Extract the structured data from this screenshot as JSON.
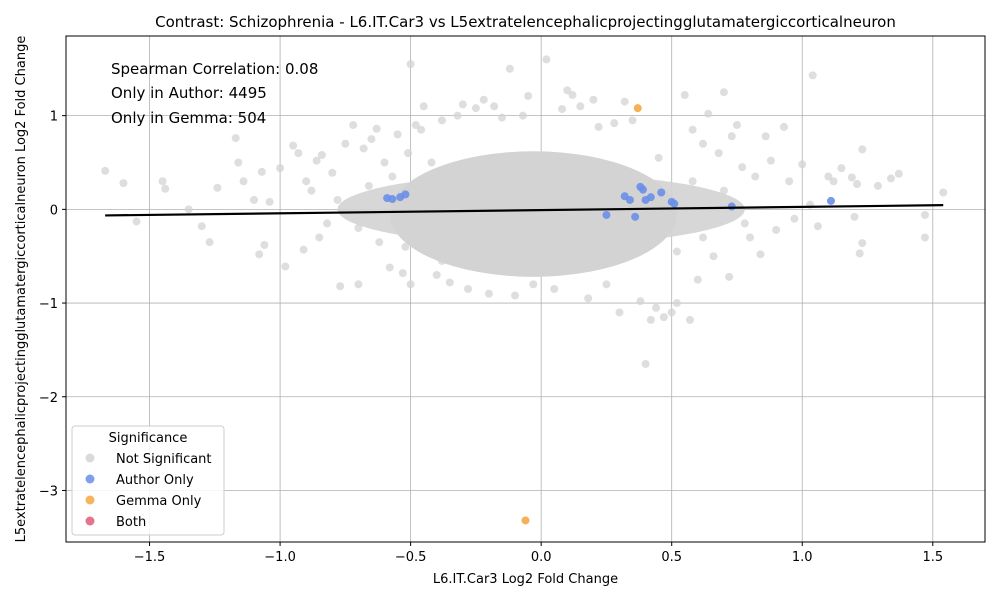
{
  "chart_data": {
    "type": "scatter",
    "title": "Contrast: Schizophrenia - L6.IT.Car3 vs L5extratelencephalicprojectingglutamatergiccorticalneuron",
    "xlabel": "L6.IT.Car3 Log2 Fold Change",
    "ylabel": "L5extratelencephalicprojectingglutamatergiccorticalneuron Log2 Fold Change",
    "xlim": [
      -1.82,
      1.7
    ],
    "ylim": [
      -3.55,
      1.85
    ],
    "x_ticks": [
      -1.5,
      -1.0,
      -0.5,
      0.0,
      0.5,
      1.0,
      1.5
    ],
    "x_tick_labels": [
      "−1.5",
      "−1.0",
      "−0.5",
      "0.0",
      "0.5",
      "1.0",
      "1.5"
    ],
    "y_ticks": [
      -3,
      -2,
      -1,
      0,
      1
    ],
    "y_tick_labels": [
      "−3",
      "−2",
      "−1",
      "0",
      "1"
    ],
    "grid": true,
    "annotations": [
      "Spearman Correlation: 0.08",
      "Only in Author: 4495",
      "Only in Gemma: 504"
    ],
    "legend": {
      "title": "Significance",
      "placement": "lower-left",
      "entries": [
        {
          "label": "Not Significant",
          "color": "#d3d3d3"
        },
        {
          "label": "Author Only",
          "color": "#6a8ee8"
        },
        {
          "label": "Gemma Only",
          "color": "#f5a742"
        },
        {
          "label": "Both",
          "color": "#e05a78"
        }
      ]
    },
    "trend_line": {
      "x": [
        -1.67,
        1.54
      ],
      "y": [
        -0.065,
        0.045
      ],
      "color": "#000000"
    },
    "series": [
      {
        "name": "Not Significant",
        "color": "#d3d3d3",
        "points": [
          [
            -1.67,
            0.41
          ],
          [
            -1.6,
            0.28
          ],
          [
            -1.55,
            -0.13
          ],
          [
            -1.45,
            0.3
          ],
          [
            -1.44,
            0.22
          ],
          [
            -1.35,
            0.0
          ],
          [
            -1.3,
            -0.18
          ],
          [
            -1.27,
            -0.35
          ],
          [
            -1.24,
            0.23
          ],
          [
            -1.17,
            0.76
          ],
          [
            -1.16,
            0.5
          ],
          [
            -1.14,
            0.3
          ],
          [
            -1.1,
            0.1
          ],
          [
            -1.08,
            -0.48
          ],
          [
            -1.07,
            0.4
          ],
          [
            -1.06,
            -0.38
          ],
          [
            -1.04,
            0.08
          ],
          [
            -1.0,
            0.44
          ],
          [
            -0.98,
            -0.61
          ],
          [
            -0.95,
            0.68
          ],
          [
            -0.93,
            0.6
          ],
          [
            -0.91,
            -0.43
          ],
          [
            -0.88,
            0.2
          ],
          [
            -0.86,
            0.52
          ],
          [
            -0.84,
            0.58
          ],
          [
            -0.82,
            -0.15
          ],
          [
            -0.8,
            0.39
          ],
          [
            -0.77,
            -0.82
          ],
          [
            -0.75,
            0.7
          ],
          [
            -0.72,
            0.9
          ],
          [
            -0.7,
            -0.8
          ],
          [
            -0.68,
            0.65
          ],
          [
            -0.65,
            0.75
          ],
          [
            -0.63,
            0.86
          ],
          [
            -0.6,
            0.5
          ],
          [
            -0.58,
            -0.62
          ],
          [
            -0.55,
            0.8
          ],
          [
            -0.53,
            -0.68
          ],
          [
            -0.51,
            0.6
          ],
          [
            -0.5,
            -0.8
          ],
          [
            -0.48,
            0.9
          ],
          [
            -0.46,
            0.85
          ],
          [
            -0.5,
            1.55
          ],
          [
            -0.45,
            1.1
          ],
          [
            -0.4,
            -0.7
          ],
          [
            -0.38,
            0.95
          ],
          [
            -0.35,
            -0.78
          ],
          [
            -0.32,
            1.0
          ],
          [
            -0.3,
            1.12
          ],
          [
            -0.28,
            -0.85
          ],
          [
            -0.25,
            1.08
          ],
          [
            -0.22,
            1.17
          ],
          [
            -0.2,
            -0.9
          ],
          [
            -0.18,
            1.1
          ],
          [
            -0.15,
            0.98
          ],
          [
            -0.12,
            1.5
          ],
          [
            -0.1,
            -0.92
          ],
          [
            -0.07,
            1.0
          ],
          [
            -0.05,
            1.21
          ],
          [
            -0.03,
            -0.8
          ],
          [
            0.02,
            1.6
          ],
          [
            0.05,
            -0.85
          ],
          [
            0.08,
            1.07
          ],
          [
            0.1,
            1.27
          ],
          [
            0.12,
            1.22
          ],
          [
            0.15,
            1.1
          ],
          [
            0.18,
            -0.95
          ],
          [
            0.2,
            1.17
          ],
          [
            0.22,
            0.88
          ],
          [
            0.25,
            -0.8
          ],
          [
            0.28,
            0.92
          ],
          [
            0.3,
            -1.1
          ],
          [
            0.32,
            1.15
          ],
          [
            0.35,
            0.95
          ],
          [
            0.38,
            -0.98
          ],
          [
            0.4,
            -1.65
          ],
          [
            0.42,
            -1.18
          ],
          [
            0.44,
            -1.05
          ],
          [
            0.47,
            -1.15
          ],
          [
            0.5,
            -1.1
          ],
          [
            0.52,
            -1.0
          ],
          [
            0.55,
            1.22
          ],
          [
            0.57,
            -1.18
          ],
          [
            0.58,
            0.85
          ],
          [
            0.6,
            -0.75
          ],
          [
            0.62,
            0.7
          ],
          [
            0.64,
            1.02
          ],
          [
            0.66,
            -0.5
          ],
          [
            0.68,
            0.6
          ],
          [
            0.7,
            1.25
          ],
          [
            0.72,
            -0.72
          ],
          [
            0.73,
            0.78
          ],
          [
            0.75,
            0.9
          ],
          [
            0.77,
            0.45
          ],
          [
            0.8,
            -0.3
          ],
          [
            0.82,
            0.35
          ],
          [
            0.84,
            -0.48
          ],
          [
            0.86,
            0.78
          ],
          [
            0.88,
            0.52
          ],
          [
            0.9,
            -0.22
          ],
          [
            0.93,
            0.88
          ],
          [
            0.95,
            0.3
          ],
          [
            0.97,
            -0.1
          ],
          [
            1.0,
            0.48
          ],
          [
            1.03,
            0.05
          ],
          [
            1.04,
            1.43
          ],
          [
            1.06,
            -0.18
          ],
          [
            1.1,
            0.35
          ],
          [
            1.12,
            0.3
          ],
          [
            1.15,
            0.44
          ],
          [
            1.19,
            0.34
          ],
          [
            1.2,
            -0.08
          ],
          [
            1.21,
            0.27
          ],
          [
            1.22,
            -0.47
          ],
          [
            1.23,
            -0.36
          ],
          [
            1.23,
            0.64
          ],
          [
            1.29,
            0.25
          ],
          [
            1.34,
            0.33
          ],
          [
            1.37,
            0.38
          ],
          [
            1.47,
            -0.06
          ],
          [
            1.47,
            -0.3
          ],
          [
            1.54,
            0.18
          ],
          [
            -0.9,
            0.3
          ],
          [
            -0.85,
            -0.3
          ],
          [
            -0.78,
            0.1
          ],
          [
            -0.7,
            -0.2
          ],
          [
            -0.66,
            0.25
          ],
          [
            -0.62,
            -0.35
          ],
          [
            -0.57,
            0.35
          ],
          [
            -0.52,
            -0.4
          ],
          [
            -0.42,
            0.5
          ],
          [
            -0.38,
            -0.55
          ],
          [
            0.45,
            0.55
          ],
          [
            0.52,
            -0.45
          ],
          [
            0.58,
            0.3
          ],
          [
            0.62,
            -0.3
          ],
          [
            0.7,
            0.2
          ],
          [
            0.78,
            -0.15
          ]
        ]
      },
      {
        "name": "Author Only",
        "color": "#6a8ee8",
        "points": [
          [
            -0.59,
            0.12
          ],
          [
            -0.57,
            0.11
          ],
          [
            -0.54,
            0.13
          ],
          [
            -0.52,
            0.16
          ],
          [
            0.25,
            -0.06
          ],
          [
            0.32,
            0.14
          ],
          [
            0.34,
            0.1
          ],
          [
            0.36,
            -0.08
          ],
          [
            0.38,
            0.24
          ],
          [
            0.39,
            0.21
          ],
          [
            0.4,
            0.1
          ],
          [
            0.42,
            0.13
          ],
          [
            0.46,
            0.18
          ],
          [
            0.5,
            0.08
          ],
          [
            0.51,
            0.06
          ],
          [
            0.73,
            0.03
          ],
          [
            1.11,
            0.09
          ]
        ]
      },
      {
        "name": "Gemma Only",
        "color": "#f5a742",
        "points": [
          [
            0.37,
            1.08
          ],
          [
            -0.06,
            -3.32
          ]
        ]
      },
      {
        "name": "Both",
        "color": "#e05a78",
        "points": []
      }
    ]
  }
}
